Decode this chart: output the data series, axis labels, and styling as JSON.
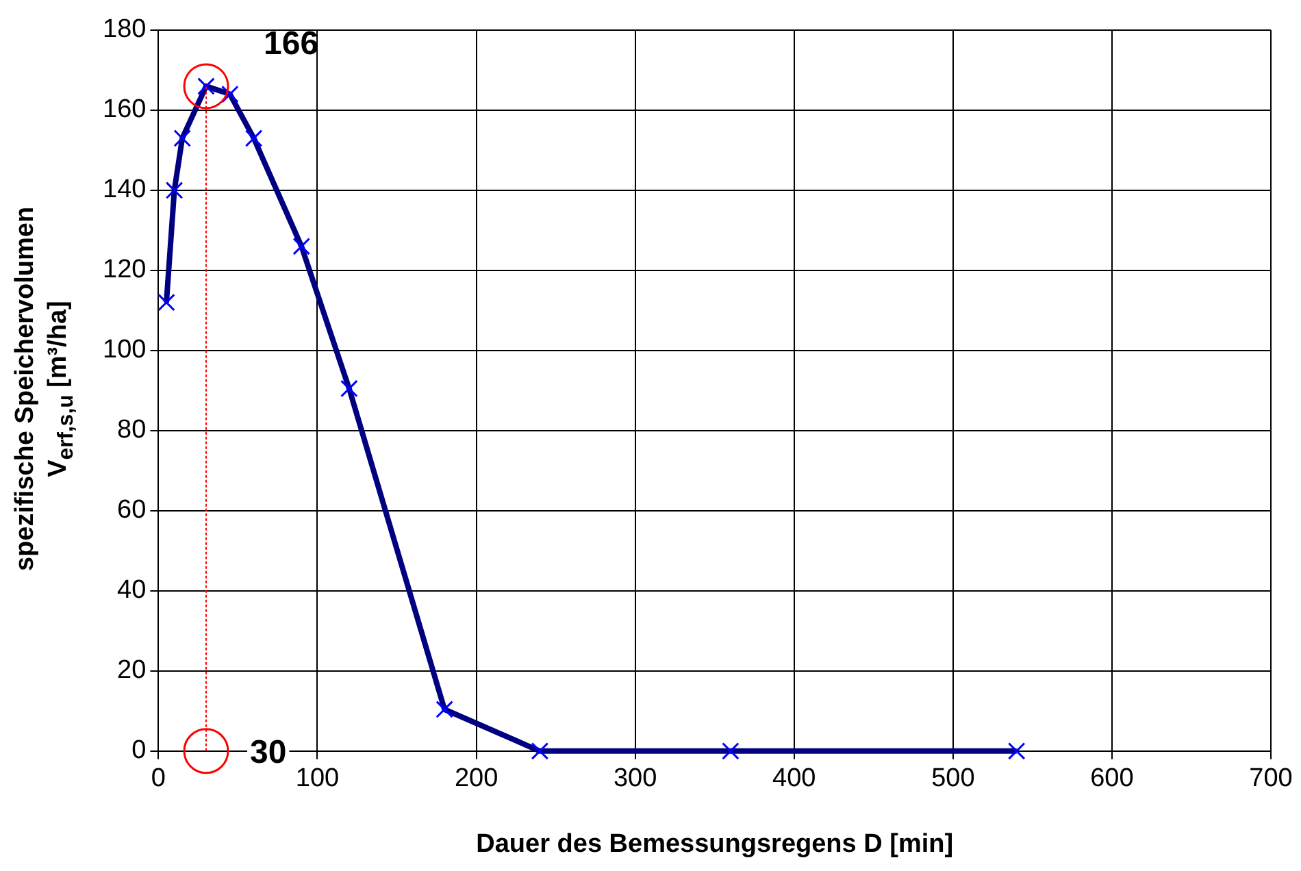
{
  "chart_data": {
    "type": "line",
    "xlabel": "Dauer des Bemessungsregens D [min]",
    "ylabel": "spezifische Speichervolumen\nV$_{erf,s,u}$ [m³/ha]",
    "series": [
      {
        "type": "line",
        "color": "#000080",
        "marker": "cross",
        "line_style": "solid",
        "x": [
          5,
          10,
          15,
          30,
          45,
          60,
          90,
          120,
          180,
          240,
          360,
          540
        ],
        "values": [
          112,
          140,
          153,
          166,
          164,
          153,
          126,
          90.5,
          10.4,
          0,
          0,
          0
        ]
      },
      {
        "type": "line",
        "color": "#ff0000",
        "marker": "none",
        "line_style": "dotted",
        "x": [
          30,
          30
        ],
        "values": [
          0,
          166
        ]
      },
      {
        "type": "scatter",
        "color": "#ff0000",
        "marker": "circle",
        "x": [
          30,
          30
        ],
        "values": [
          166,
          0
        ]
      }
    ],
    "annotations": [
      {
        "text": "166",
        "x": 30,
        "y": 166
      },
      {
        "text": "30",
        "x": 30,
        "y": 0
      }
    ],
    "xlim": [
      0,
      700
    ],
    "xticks": [
      0,
      100,
      200,
      300,
      400,
      500,
      600,
      700
    ],
    "ylim": [
      0,
      180
    ],
    "yticks": [
      0,
      20,
      40,
      60,
      80,
      100,
      120,
      140,
      160,
      180
    ],
    "grid": true,
    "legend": false
  }
}
